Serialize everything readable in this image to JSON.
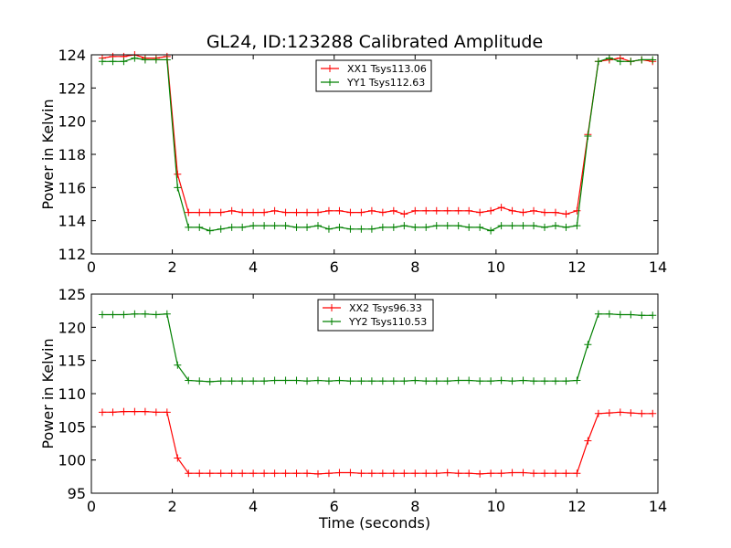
{
  "figure": {
    "title": "GL24, ID:123288 Calibrated Amplitude",
    "xlabel": "Time (seconds)"
  },
  "chart_data": [
    {
      "type": "line",
      "ylabel": "Power in Kelvin",
      "xlim": [
        0,
        14
      ],
      "ylim": [
        112,
        124
      ],
      "xticks": [
        0,
        2,
        4,
        6,
        8,
        10,
        12,
        14
      ],
      "yticks": [
        112,
        114,
        116,
        118,
        120,
        122,
        124
      ],
      "legend_position": "top-center",
      "x": [
        0.27,
        0.53,
        0.8,
        1.07,
        1.33,
        1.6,
        1.87,
        2.13,
        2.4,
        2.67,
        2.93,
        3.2,
        3.47,
        3.73,
        4.0,
        4.27,
        4.53,
        4.8,
        5.07,
        5.33,
        5.6,
        5.87,
        6.13,
        6.4,
        6.67,
        6.93,
        7.2,
        7.47,
        7.73,
        8.0,
        8.27,
        8.53,
        8.8,
        9.07,
        9.33,
        9.6,
        9.87,
        10.13,
        10.4,
        10.67,
        10.93,
        11.2,
        11.47,
        11.73,
        12.0,
        12.27,
        12.53,
        12.8,
        13.07,
        13.33,
        13.6,
        13.87
      ],
      "series": [
        {
          "name": "XX1 Tsys113.06",
          "color": "#ff0000",
          "values": [
            123.8,
            123.9,
            123.9,
            124.0,
            123.8,
            123.8,
            123.9,
            116.8,
            114.5,
            114.5,
            114.5,
            114.5,
            114.6,
            114.5,
            114.5,
            114.5,
            114.6,
            114.5,
            114.5,
            114.5,
            114.5,
            114.6,
            114.6,
            114.5,
            114.5,
            114.6,
            114.5,
            114.6,
            114.4,
            114.6,
            114.6,
            114.6,
            114.6,
            114.6,
            114.6,
            114.5,
            114.6,
            114.8,
            114.6,
            114.5,
            114.6,
            114.5,
            114.5,
            114.4,
            114.6,
            119.2,
            123.6,
            123.7,
            123.8,
            123.6,
            123.7,
            123.6
          ]
        },
        {
          "name": "YY1 Tsys112.63",
          "color": "#008000",
          "values": [
            123.6,
            123.6,
            123.6,
            123.8,
            123.7,
            123.7,
            123.7,
            116.0,
            113.6,
            113.6,
            113.4,
            113.5,
            113.6,
            113.6,
            113.7,
            113.7,
            113.7,
            113.7,
            113.6,
            113.6,
            113.7,
            113.5,
            113.6,
            113.5,
            113.5,
            113.5,
            113.6,
            113.6,
            113.7,
            113.6,
            113.6,
            113.7,
            113.7,
            113.7,
            113.6,
            113.6,
            113.4,
            113.7,
            113.7,
            113.7,
            113.7,
            113.6,
            113.7,
            113.6,
            113.7,
            119.1,
            123.6,
            123.8,
            123.6,
            123.6,
            123.7,
            123.7
          ]
        }
      ]
    },
    {
      "type": "line",
      "ylabel": "Power in Kelvin",
      "xlabel": "Time (seconds)",
      "xlim": [
        0,
        14
      ],
      "ylim": [
        95,
        125
      ],
      "xticks": [
        0,
        2,
        4,
        6,
        8,
        10,
        12,
        14
      ],
      "yticks": [
        95,
        100,
        105,
        110,
        115,
        120,
        125
      ],
      "legend_position": "top-center",
      "x": [
        0.27,
        0.53,
        0.8,
        1.07,
        1.33,
        1.6,
        1.87,
        2.13,
        2.4,
        2.67,
        2.93,
        3.2,
        3.47,
        3.73,
        4.0,
        4.27,
        4.53,
        4.8,
        5.07,
        5.33,
        5.6,
        5.87,
        6.13,
        6.4,
        6.67,
        6.93,
        7.2,
        7.47,
        7.73,
        8.0,
        8.27,
        8.53,
        8.8,
        9.07,
        9.33,
        9.6,
        9.87,
        10.13,
        10.4,
        10.67,
        10.93,
        11.2,
        11.47,
        11.73,
        12.0,
        12.27,
        12.53,
        12.8,
        13.07,
        13.33,
        13.6,
        13.87
      ],
      "series": [
        {
          "name": "XX2 Tsys96.33",
          "color": "#ff0000",
          "values": [
            107.2,
            107.2,
            107.3,
            107.3,
            107.3,
            107.2,
            107.2,
            100.3,
            98.0,
            98.0,
            98.0,
            98.0,
            98.0,
            98.0,
            98.0,
            98.0,
            98.0,
            98.0,
            98.0,
            98.0,
            97.9,
            98.0,
            98.1,
            98.1,
            98.0,
            98.0,
            98.0,
            98.0,
            98.0,
            98.0,
            98.0,
            98.0,
            98.1,
            98.0,
            98.0,
            97.9,
            98.0,
            98.0,
            98.1,
            98.1,
            98.0,
            98.0,
            98.0,
            98.0,
            98.0,
            102.9,
            107.0,
            107.1,
            107.2,
            107.1,
            107.0,
            107.0
          ]
        },
        {
          "name": "YY2 Tsys110.53",
          "color": "#008000",
          "values": [
            121.9,
            121.9,
            121.9,
            122.0,
            122.0,
            121.9,
            122.0,
            114.3,
            112.0,
            111.9,
            111.8,
            111.9,
            111.9,
            111.9,
            111.9,
            111.9,
            112.0,
            112.0,
            112.0,
            111.9,
            112.0,
            111.9,
            112.0,
            111.9,
            111.9,
            111.9,
            111.9,
            111.9,
            111.9,
            112.0,
            111.9,
            111.9,
            111.9,
            112.0,
            112.0,
            111.9,
            111.9,
            112.0,
            111.9,
            112.0,
            111.9,
            111.9,
            111.9,
            111.9,
            112.0,
            117.4,
            122.0,
            122.0,
            121.9,
            121.9,
            121.8,
            121.8
          ]
        }
      ]
    }
  ]
}
